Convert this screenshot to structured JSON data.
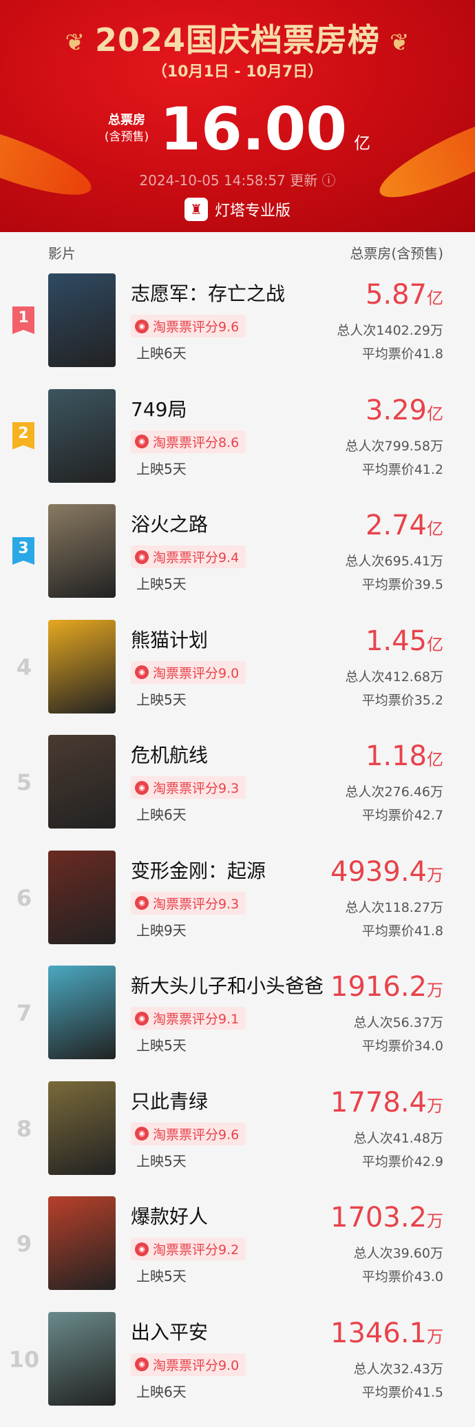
{
  "header": {
    "title": "2024国庆档票房榜",
    "dates": "（10月1日 - 10月7日）",
    "total_label": "总票房",
    "total_sub": "(含预售)",
    "total_value": "16.00",
    "total_unit": "亿",
    "updated": "2024-10-05 14:58:57 更新 ⓘ",
    "brand": "灯塔专业版"
  },
  "columns": {
    "film": "影片",
    "box": "总票房(含预售)"
  },
  "colors": {
    "accent": "#e8424a",
    "header_red": "#cc0d12",
    "gold": "#f7dcaa",
    "rank1": "#f2606a",
    "rank2": "#f7b21f",
    "rank3": "#2aa8e6"
  },
  "films": [
    {
      "rank": "1",
      "name": "志愿军：存亡之战",
      "score": "淘票票评分9.6",
      "days": "上映6天",
      "box": "5.87",
      "unit": "亿",
      "people": "总人次1402.29万",
      "price": "平均票价41.8",
      "poster": "#2f4a63"
    },
    {
      "rank": "2",
      "name": "749局",
      "score": "淘票票评分8.6",
      "days": "上映5天",
      "box": "3.29",
      "unit": "亿",
      "people": "总人次799.58万",
      "price": "平均票价41.2",
      "poster": "#3c5560"
    },
    {
      "rank": "3",
      "name": "浴火之路",
      "score": "淘票票评分9.4",
      "days": "上映5天",
      "box": "2.74",
      "unit": "亿",
      "people": "总人次695.41万",
      "price": "平均票价39.5",
      "poster": "#8a7a62"
    },
    {
      "rank": "4",
      "name": "熊猫计划",
      "score": "淘票票评分9.0",
      "days": "上映5天",
      "box": "1.45",
      "unit": "亿",
      "people": "总人次412.68万",
      "price": "平均票价35.2",
      "poster": "#e6a820"
    },
    {
      "rank": "5",
      "name": "危机航线",
      "score": "淘票票评分9.3",
      "days": "上映6天",
      "box": "1.18",
      "unit": "亿",
      "people": "总人次276.46万",
      "price": "平均票价42.7",
      "poster": "#4a3a30"
    },
    {
      "rank": "6",
      "name": "变形金刚：起源",
      "score": "淘票票评分9.3",
      "days": "上映9天",
      "box": "4939.4",
      "unit": "万",
      "people": "总人次118.27万",
      "price": "平均票价41.8",
      "poster": "#6a2a22"
    },
    {
      "rank": "7",
      "name": "新大头儿子和小头爸爸",
      "score": "淘票票评分9.1",
      "days": "上映5天",
      "box": "1916.2",
      "unit": "万",
      "people": "总人次56.37万",
      "price": "平均票价34.0",
      "poster": "#4aa8c0"
    },
    {
      "rank": "8",
      "name": "只此青绿",
      "score": "淘票票评分9.6",
      "days": "上映5天",
      "box": "1778.4",
      "unit": "万",
      "people": "总人次41.48万",
      "price": "平均票价42.9",
      "poster": "#7a6a3a"
    },
    {
      "rank": "9",
      "name": "爆款好人",
      "score": "淘票票评分9.2",
      "days": "上映5天",
      "box": "1703.2",
      "unit": "万",
      "people": "总人次39.60万",
      "price": "平均票价43.0",
      "poster": "#b8402a"
    },
    {
      "rank": "10",
      "name": "出入平安",
      "score": "淘票票评分9.0",
      "days": "上映6天",
      "box": "1346.1",
      "unit": "万",
      "people": "总人次32.43万",
      "price": "平均票价41.5",
      "poster": "#6a8a8a"
    }
  ]
}
